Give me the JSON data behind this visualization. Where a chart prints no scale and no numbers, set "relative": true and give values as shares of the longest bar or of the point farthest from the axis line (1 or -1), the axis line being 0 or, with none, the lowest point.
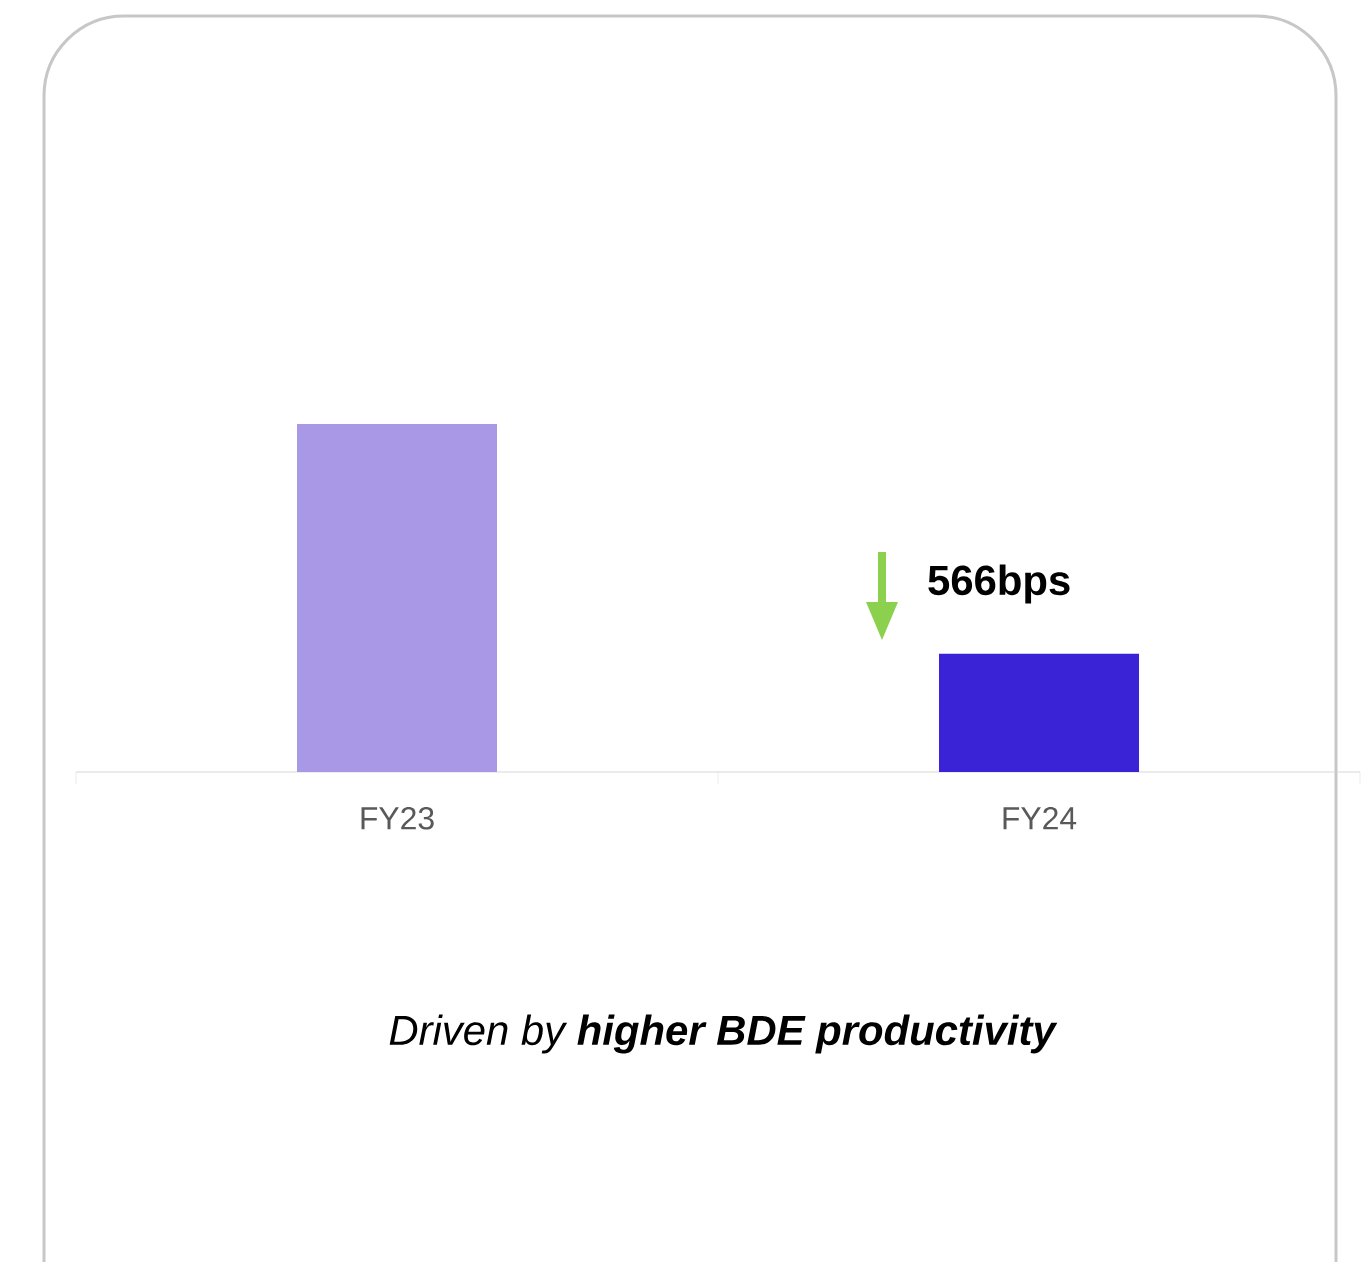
{
  "chart_data": {
    "type": "bar",
    "relative": true,
    "categories": [
      "FY23",
      "FY24"
    ],
    "values": [
      1,
      0.34
    ],
    "colors": [
      "#a898e6",
      "#3a22d6"
    ],
    "annotations": [
      "566bps",
      "Driven by **higher BDE productivity**"
    ]
  }
}
